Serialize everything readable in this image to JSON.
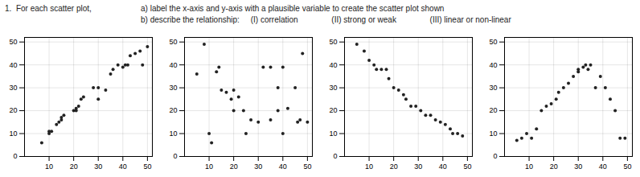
{
  "title": "1.  For each scatter plot,",
  "annotations": [
    "a) label the x-axis and y-axis with a plausible variable to create the scatter plot shown",
    "b) describe the relationship:     (I) correlation               (II) strong or weak               (III) linear or non-linear"
  ],
  "chart_data": [
    {
      "type": "scatter",
      "x": [
        7,
        10,
        10,
        11,
        13,
        14,
        15,
        15,
        16,
        20,
        21,
        21,
        22,
        23,
        24,
        28,
        30,
        30,
        33,
        35,
        36,
        38,
        40,
        41,
        42,
        43,
        45,
        47,
        48,
        50
      ],
      "values": [
        6,
        10,
        11,
        11,
        14,
        15,
        16,
        17,
        18,
        20,
        21,
        20,
        22,
        25,
        26,
        30,
        30,
        25,
        29,
        36,
        38,
        40,
        39,
        40,
        40,
        44,
        45,
        46,
        40,
        48
      ],
      "color": "#222222",
      "xlim": [
        0,
        52
      ],
      "ylim": [
        0,
        52
      ],
      "xticks": [
        10,
        20,
        30,
        40,
        50
      ],
      "yticks": [
        0,
        10,
        20,
        30,
        40,
        50
      ],
      "grid": true
    },
    {
      "type": "scatter",
      "x": [
        5,
        8,
        10,
        11,
        13,
        14,
        15,
        17,
        19,
        20,
        20,
        22,
        24,
        25,
        27,
        30,
        32,
        35,
        35,
        38,
        38,
        40,
        40,
        42,
        45,
        46,
        47,
        48,
        50
      ],
      "values": [
        36,
        49,
        10,
        6,
        37,
        39,
        29,
        28,
        25,
        20,
        29,
        26,
        20,
        10,
        16,
        15,
        39,
        16,
        39,
        30,
        20,
        39,
        10,
        21,
        30,
        15,
        16,
        45,
        15
      ],
      "color": "#222222",
      "xlim": [
        0,
        52
      ],
      "ylim": [
        0,
        52
      ],
      "xticks": [
        10,
        20,
        30,
        40,
        50
      ],
      "yticks": [
        0,
        10,
        20,
        30,
        40,
        50
      ],
      "grid": true
    },
    {
      "type": "scatter",
      "x": [
        5,
        8,
        10,
        12,
        13,
        15,
        17,
        18,
        20,
        22,
        24,
        25,
        27,
        29,
        31,
        33,
        35,
        37,
        39,
        41,
        43,
        44,
        46,
        48
      ],
      "values": [
        49,
        46,
        42,
        40,
        38,
        38,
        38,
        34,
        30,
        29,
        27,
        25,
        22,
        22,
        20,
        18,
        18,
        16,
        15,
        14,
        12,
        10,
        10,
        9
      ],
      "color": "#222222",
      "xlim": [
        0,
        52
      ],
      "ylim": [
        0,
        52
      ],
      "xticks": [
        10,
        20,
        30,
        40,
        50
      ],
      "yticks": [
        0,
        10,
        20,
        30,
        40,
        50
      ],
      "grid": true
    },
    {
      "type": "scatter",
      "x": [
        5,
        7,
        9,
        11,
        13,
        15,
        17,
        19,
        21,
        22,
        24,
        26,
        28,
        30,
        30,
        32,
        33,
        34,
        35,
        37,
        39,
        41,
        43,
        45,
        47,
        49
      ],
      "values": [
        7,
        8,
        10,
        8,
        12,
        20,
        22,
        23,
        25,
        28,
        30,
        32,
        35,
        37,
        38,
        39,
        40,
        38,
        40,
        30,
        35,
        30,
        25,
        20,
        8,
        8
      ],
      "color": "#222222",
      "xlim": [
        0,
        52
      ],
      "ylim": [
        0,
        52
      ],
      "xticks": [
        10,
        20,
        30,
        40,
        50
      ],
      "yticks": [
        0,
        10,
        20,
        30,
        40,
        50
      ],
      "grid": true
    }
  ]
}
